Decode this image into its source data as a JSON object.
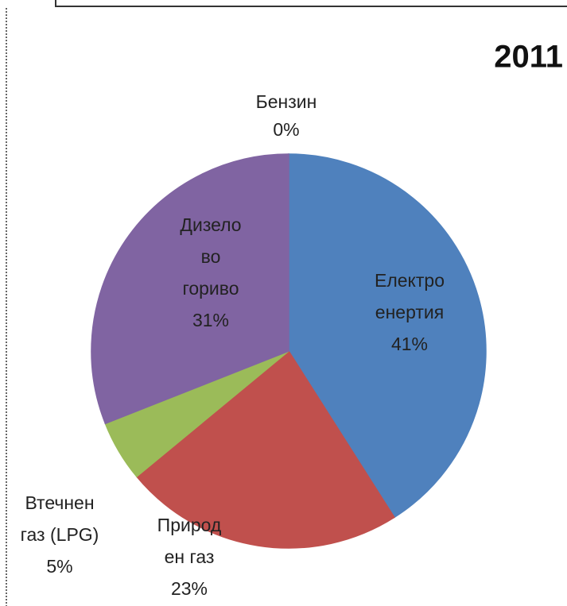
{
  "chart_data": {
    "type": "pie",
    "title": "2011",
    "categories": [
      "Бензин",
      "Електро\nенертия",
      "Природ\nен газ",
      "Втечнен\nгаз (LPG)",
      "Дизело\nво\nгориво"
    ],
    "values": [
      0,
      41,
      23,
      5,
      31
    ],
    "value_labels": [
      "0%",
      "41%",
      "23%",
      "5%",
      "31%"
    ],
    "colors": [
      "#4bacc6",
      "#4f81bd",
      "#c0504d",
      "#9bbb59",
      "#8064a2"
    ]
  }
}
